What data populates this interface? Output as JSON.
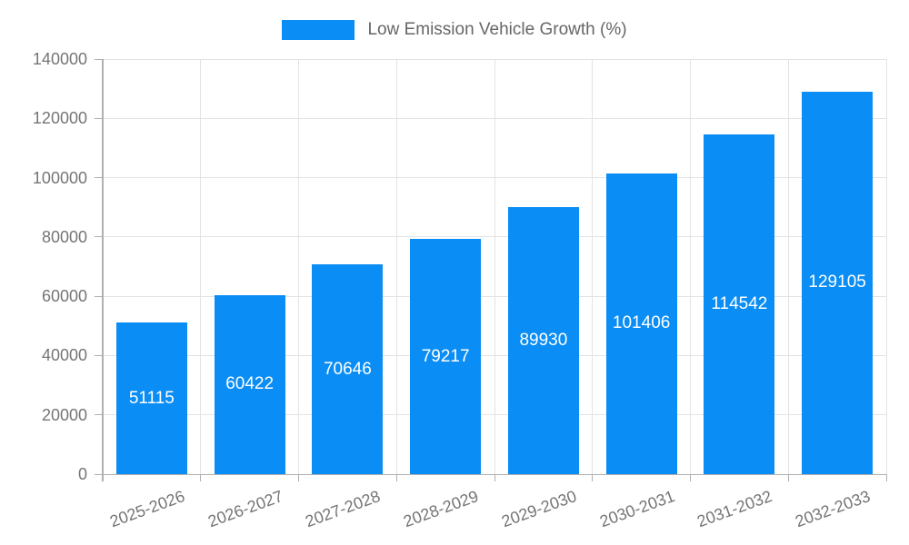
{
  "chart_data": {
    "type": "bar",
    "legend_label": "Low Emission Vehicle Growth (%)",
    "categories": [
      "2025-2026",
      "2026-2027",
      "2027-2028",
      "2028-2029",
      "2029-2030",
      "2030-2031",
      "2031-2032",
      "2032-2033"
    ],
    "values": [
      51115,
      60422,
      70646,
      79217,
      89930,
      101406,
      114542,
      129105
    ],
    "value_labels": [
      "51115",
      "60422",
      "70646",
      "79217",
      "89930",
      "101406",
      "114542",
      "129105"
    ],
    "ylim": [
      0,
      140000
    ],
    "ytick_step": 20000,
    "ytick_labels": [
      "0",
      "20000",
      "40000",
      "60000",
      "80000",
      "100000",
      "120000",
      "140000"
    ],
    "grid": true,
    "legend_position": "top",
    "bar_color": "#0a8df4",
    "bar_value_text_color": "#ffffff",
    "axis_text_color": "#757575",
    "grid_color": "#e3e3e3",
    "axis_line_color": "#b0b0b0"
  }
}
